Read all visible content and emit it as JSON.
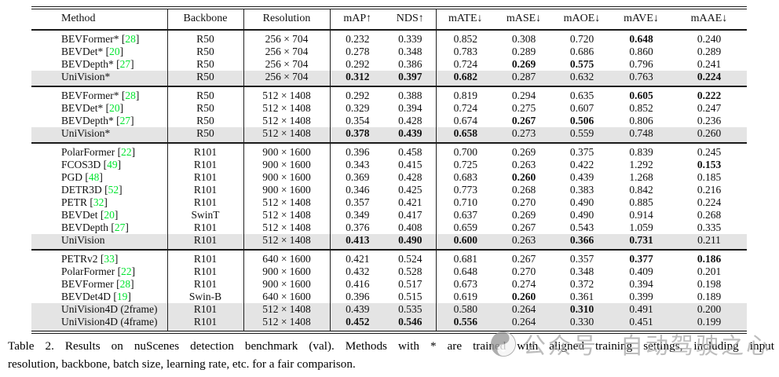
{
  "colors": {
    "citation_green": "#00E42E",
    "highlight_row": "#E4E4E4",
    "rule": "#1A1A1A",
    "watermark_gray": "#ADADAD"
  },
  "table": {
    "columns": [
      "Method",
      "Backbone",
      "Resolution",
      "mAP↑",
      "NDS↑",
      "mATE↓",
      "mASE↓",
      "mAOE↓",
      "mAVE↓",
      "mAAE↓"
    ],
    "metric_keys": [
      "mAP",
      "NDS",
      "mATE",
      "mASE",
      "mAOE",
      "mAVE",
      "mAAE"
    ],
    "groups": [
      {
        "rows": [
          {
            "method": "BEVFormer*",
            "ref": "28",
            "backbone": "R50",
            "resolution": "256 × 704",
            "highlight": false,
            "values": [
              "0.232",
              "0.339",
              "0.852",
              "0.308",
              "0.720",
              "0.648",
              "0.240"
            ],
            "bold": [
              5
            ]
          },
          {
            "method": "BEVDet*",
            "ref": "20",
            "backbone": "R50",
            "resolution": "256 × 704",
            "highlight": false,
            "values": [
              "0.278",
              "0.348",
              "0.783",
              "0.289",
              "0.686",
              "0.860",
              "0.289"
            ],
            "bold": []
          },
          {
            "method": "BEVDepth*",
            "ref": "27",
            "backbone": "R50",
            "resolution": "256 × 704",
            "highlight": false,
            "values": [
              "0.292",
              "0.386",
              "0.724",
              "0.269",
              "0.575",
              "0.796",
              "0.241"
            ],
            "bold": [
              3,
              4
            ]
          },
          {
            "method": "UniVision*",
            "ref": null,
            "backbone": "R50",
            "resolution": "256 × 704",
            "highlight": true,
            "values": [
              "0.312",
              "0.397",
              "0.682",
              "0.287",
              "0.632",
              "0.763",
              "0.224"
            ],
            "bold": [
              0,
              1,
              2,
              6
            ]
          }
        ]
      },
      {
        "rows": [
          {
            "method": "BEVFormer*",
            "ref": "28",
            "backbone": "R50",
            "resolution": "512 × 1408",
            "highlight": false,
            "values": [
              "0.292",
              "0.388",
              "0.819",
              "0.294",
              "0.635",
              "0.605",
              "0.222"
            ],
            "bold": [
              5,
              6
            ]
          },
          {
            "method": "BEVDet*",
            "ref": "20",
            "backbone": "R50",
            "resolution": "512 × 1408",
            "highlight": false,
            "values": [
              "0.329",
              "0.394",
              "0.724",
              "0.275",
              "0.607",
              "0.852",
              "0.247"
            ],
            "bold": []
          },
          {
            "method": "BEVDepth*",
            "ref": "27",
            "backbone": "R50",
            "resolution": "512 × 1408",
            "highlight": false,
            "values": [
              "0.354",
              "0.428",
              "0.674",
              "0.267",
              "0.506",
              "0.806",
              "0.236"
            ],
            "bold": [
              3,
              4
            ]
          },
          {
            "method": "UniVision*",
            "ref": null,
            "backbone": "R50",
            "resolution": "512 × 1408",
            "highlight": true,
            "values": [
              "0.378",
              "0.439",
              "0.658",
              "0.273",
              "0.559",
              "0.748",
              "0.260"
            ],
            "bold": [
              0,
              1,
              2
            ]
          }
        ]
      },
      {
        "rows": [
          {
            "method": "PolarFormer",
            "ref": "22",
            "backbone": "R101",
            "resolution": "900 × 1600",
            "highlight": false,
            "values": [
              "0.396",
              "0.458",
              "0.700",
              "0.269",
              "0.375",
              "0.839",
              "0.245"
            ],
            "bold": []
          },
          {
            "method": "FCOS3D",
            "ref": "49",
            "backbone": "R101",
            "resolution": "900 × 1600",
            "highlight": false,
            "values": [
              "0.343",
              "0.415",
              "0.725",
              "0.263",
              "0.422",
              "1.292",
              "0.153"
            ],
            "bold": [
              6
            ]
          },
          {
            "method": "PGD",
            "ref": "48",
            "backbone": "R101",
            "resolution": "900 × 1600",
            "highlight": false,
            "values": [
              "0.369",
              "0.428",
              "0.683",
              "0.260",
              "0.439",
              "1.268",
              "0.185"
            ],
            "bold": [
              3
            ]
          },
          {
            "method": "DETR3D",
            "ref": "52",
            "backbone": "R101",
            "resolution": "900 × 1600",
            "highlight": false,
            "values": [
              "0.346",
              "0.425",
              "0.773",
              "0.268",
              "0.383",
              "0.842",
              "0.216"
            ],
            "bold": []
          },
          {
            "method": "PETR",
            "ref": "32",
            "backbone": "R101",
            "resolution": "512 × 1408",
            "highlight": false,
            "values": [
              "0.357",
              "0.421",
              "0.710",
              "0.270",
              "0.490",
              "0.885",
              "0.224"
            ],
            "bold": []
          },
          {
            "method": "BEVDet",
            "ref": "20",
            "backbone": "SwinT",
            "resolution": "512 × 1408",
            "highlight": false,
            "values": [
              "0.349",
              "0.417",
              "0.637",
              "0.269",
              "0.490",
              "0.914",
              "0.268"
            ],
            "bold": []
          },
          {
            "method": "BEVDepth",
            "ref": "27",
            "backbone": "R101",
            "resolution": "512 × 1408",
            "highlight": false,
            "values": [
              "0.376",
              "0.408",
              "0.659",
              "0.267",
              "0.543",
              "1.059",
              "0.335"
            ],
            "bold": []
          },
          {
            "method": "UniVision",
            "ref": null,
            "backbone": "R101",
            "resolution": "512 × 1408",
            "highlight": true,
            "values": [
              "0.413",
              "0.490",
              "0.600",
              "0.263",
              "0.366",
              "0.731",
              "0.211"
            ],
            "bold": [
              0,
              1,
              2,
              4,
              5
            ]
          }
        ]
      },
      {
        "rows": [
          {
            "method": "PETRv2",
            "ref": "33",
            "backbone": "R101",
            "resolution": "640 × 1600",
            "highlight": false,
            "values": [
              "0.421",
              "0.524",
              "0.681",
              "0.267",
              "0.357",
              "0.377",
              "0.186"
            ],
            "bold": [
              5,
              6
            ]
          },
          {
            "method": "PolarFormer",
            "ref": "22",
            "backbone": "R101",
            "resolution": "900 × 1600",
            "highlight": false,
            "values": [
              "0.432",
              "0.528",
              "0.648",
              "0.270",
              "0.348",
              "0.409",
              "0.201"
            ],
            "bold": []
          },
          {
            "method": "BEVFormer",
            "ref": "28",
            "backbone": "R101",
            "resolution": "900 × 1600",
            "highlight": false,
            "values": [
              "0.416",
              "0.517",
              "0.673",
              "0.274",
              "0.372",
              "0.394",
              "0.198"
            ],
            "bold": []
          },
          {
            "method": "BEVDet4D",
            "ref": "19",
            "backbone": "Swin-B",
            "resolution": "640 × 1600",
            "highlight": false,
            "values": [
              "0.396",
              "0.515",
              "0.619",
              "0.260",
              "0.361",
              "0.399",
              "0.189"
            ],
            "bold": [
              3
            ]
          },
          {
            "method": "UniVision4D (2frame)",
            "ref": null,
            "backbone": "R101",
            "resolution": "512 × 1408",
            "highlight": true,
            "values": [
              "0.439",
              "0.535",
              "0.580",
              "0.264",
              "0.310",
              "0.491",
              "0.200"
            ],
            "bold": [
              4
            ]
          },
          {
            "method": "UniVision4D (4frame)",
            "ref": null,
            "backbone": "R101",
            "resolution": "512 × 1408",
            "highlight": true,
            "values": [
              "0.452",
              "0.546",
              "0.556",
              "0.264",
              "0.330",
              "0.451",
              "0.199"
            ],
            "bold": [
              0,
              1,
              2
            ]
          }
        ]
      }
    ]
  },
  "caption": {
    "line1": "Table 2.  Results on nuScenes detection benchmark (val).  Methods with * are trained with aligned training settings, including input",
    "line2": "resolution, backbone, batch size, learning rate, etc. for a fair comparison."
  },
  "watermark": {
    "part1": "公众号",
    "part2": "自动驾驶之心"
  }
}
